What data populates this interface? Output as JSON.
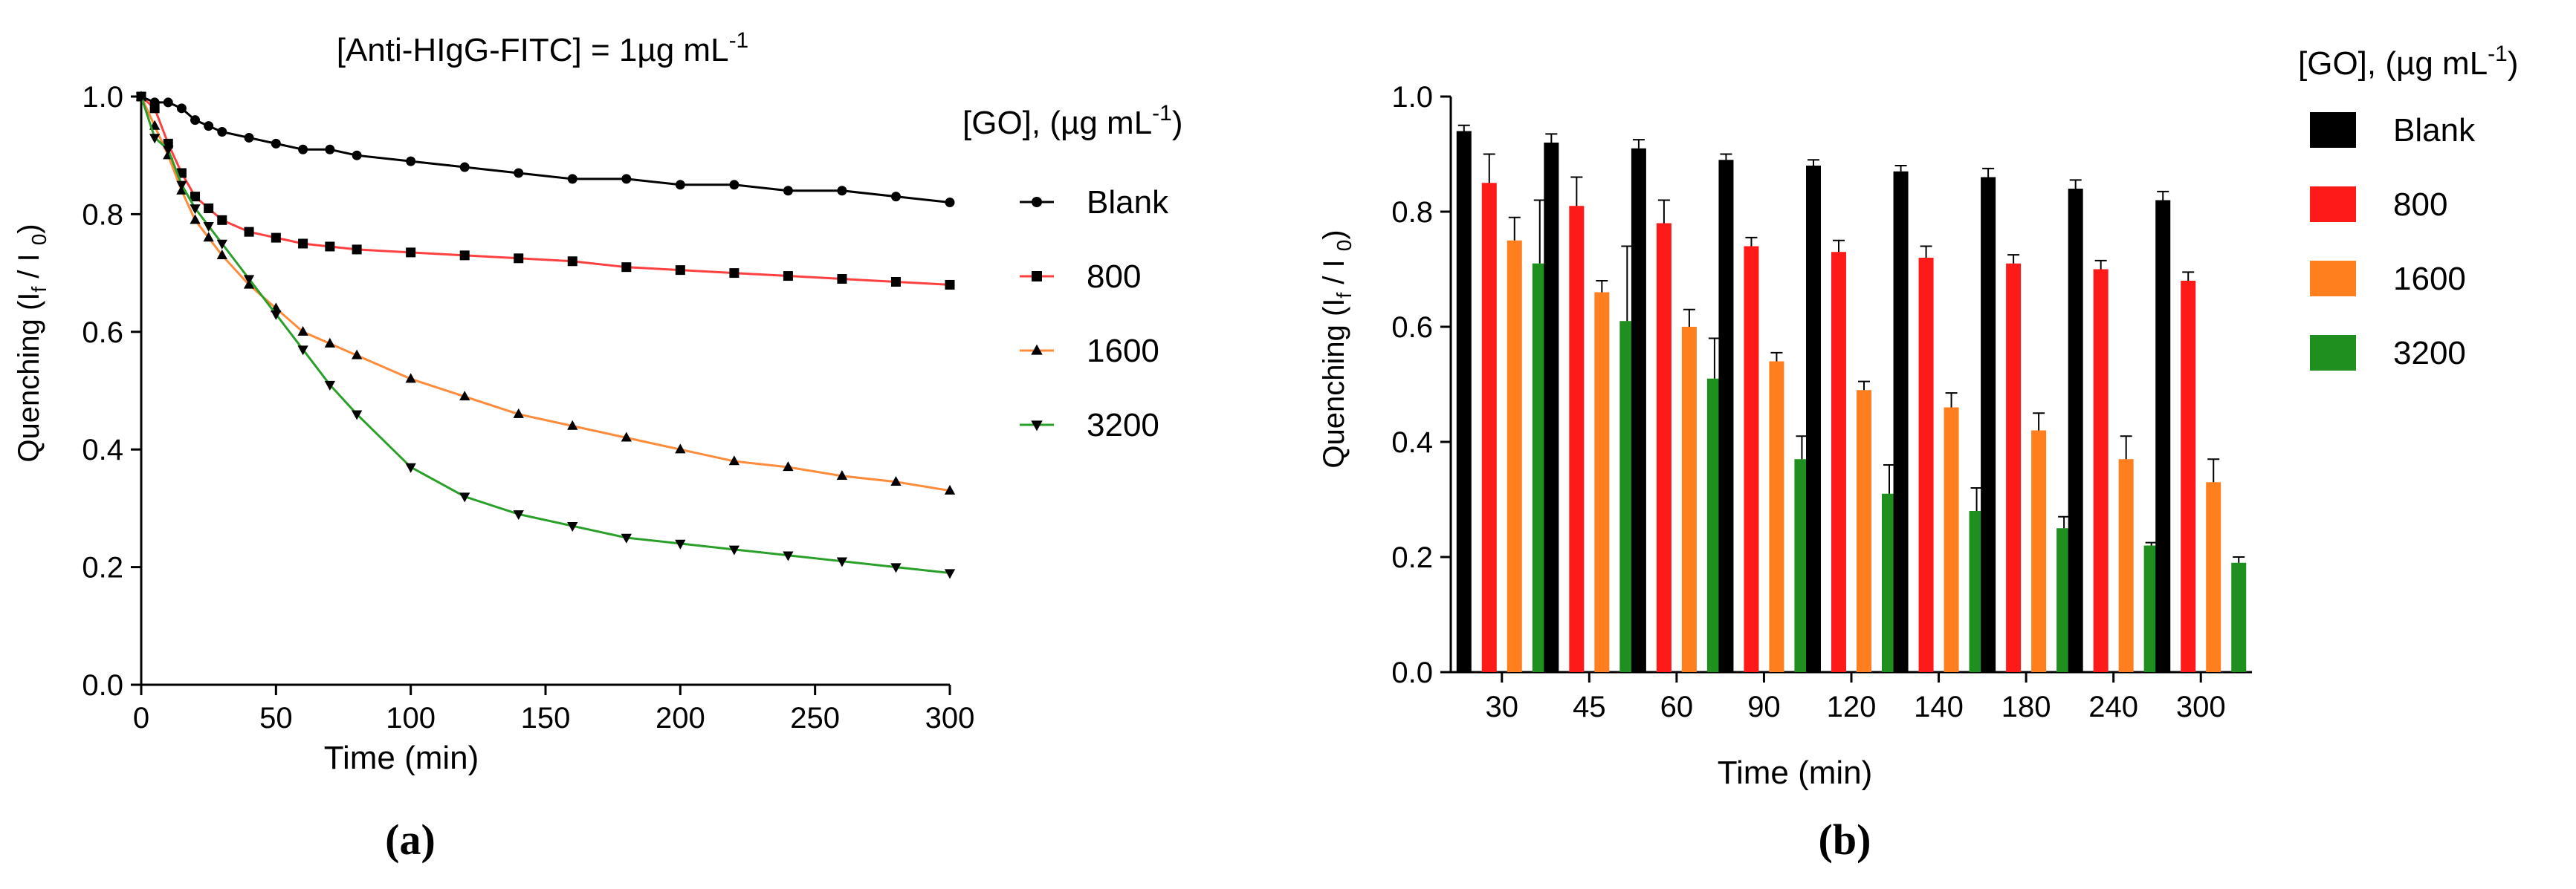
{
  "panel_a": {
    "label": "(a)",
    "title": "[Anti-HIgG-FITC] = 1µg mL⁻¹",
    "legend_title": "[GO],  (µg mL⁻¹)"
  },
  "panel_b": {
    "label": "(b)",
    "legend_title": "[GO],  (µg mL⁻¹)"
  },
  "colors": {
    "blank": "#000000",
    "c800": "#ff1a1a",
    "c1600": "#ff7f1f",
    "c3200": "#1f8f1f",
    "blank_line": "#000000",
    "c800_line": "#ff4040",
    "c1600_line": "#ff8c3a",
    "c3200_line": "#2aa02a"
  },
  "chart_data": [
    {
      "type": "line",
      "panel": "a",
      "title": "[Anti-HIgG-FITC] = 1µg mL⁻¹",
      "xlabel": "Time (min)",
      "ylabel": "Quenching (If / I0)",
      "xlim": [
        0,
        300
      ],
      "ylim": [
        0,
        1.0
      ],
      "xticks": [
        0,
        50,
        100,
        150,
        200,
        250,
        300
      ],
      "yticks": [
        0.0,
        0.2,
        0.4,
        0.6,
        0.8,
        1.0
      ],
      "legend_title": "[GO],  (µg mL⁻¹)",
      "legend_position": "right",
      "series": [
        {
          "name": "Blank",
          "marker": "circle",
          "x": [
            0,
            5,
            10,
            15,
            20,
            25,
            30,
            40,
            50,
            60,
            70,
            80,
            100,
            120,
            140,
            160,
            180,
            200,
            220,
            240,
            260,
            280,
            300
          ],
          "y": [
            1.0,
            0.99,
            0.99,
            0.98,
            0.96,
            0.95,
            0.94,
            0.93,
            0.92,
            0.91,
            0.91,
            0.9,
            0.89,
            0.88,
            0.87,
            0.86,
            0.86,
            0.85,
            0.85,
            0.84,
            0.84,
            0.83,
            0.82
          ]
        },
        {
          "name": "800",
          "marker": "square",
          "x": [
            0,
            5,
            10,
            15,
            20,
            25,
            30,
            40,
            50,
            60,
            70,
            80,
            100,
            120,
            140,
            160,
            180,
            200,
            220,
            240,
            260,
            280,
            300
          ],
          "y": [
            1.0,
            0.98,
            0.92,
            0.87,
            0.83,
            0.81,
            0.79,
            0.77,
            0.76,
            0.75,
            0.745,
            0.74,
            0.735,
            0.73,
            0.725,
            0.72,
            0.71,
            0.705,
            0.7,
            0.695,
            0.69,
            0.685,
            0.68
          ]
        },
        {
          "name": "1600",
          "marker": "triangle",
          "x": [
            0,
            5,
            10,
            15,
            20,
            25,
            30,
            40,
            50,
            60,
            70,
            80,
            100,
            120,
            140,
            160,
            180,
            200,
            220,
            240,
            260,
            280,
            300
          ],
          "y": [
            1.0,
            0.95,
            0.9,
            0.84,
            0.79,
            0.76,
            0.73,
            0.68,
            0.64,
            0.6,
            0.58,
            0.56,
            0.52,
            0.49,
            0.46,
            0.44,
            0.42,
            0.4,
            0.38,
            0.37,
            0.355,
            0.345,
            0.33
          ]
        },
        {
          "name": "3200",
          "marker": "triangle-down",
          "x": [
            0,
            5,
            10,
            15,
            20,
            25,
            30,
            40,
            50,
            60,
            70,
            80,
            100,
            120,
            140,
            160,
            180,
            200,
            220,
            240,
            260,
            280,
            300
          ],
          "y": [
            1.0,
            0.93,
            0.91,
            0.85,
            0.81,
            0.78,
            0.75,
            0.69,
            0.63,
            0.57,
            0.51,
            0.46,
            0.37,
            0.32,
            0.29,
            0.27,
            0.25,
            0.24,
            0.23,
            0.22,
            0.21,
            0.2,
            0.19
          ]
        }
      ]
    },
    {
      "type": "bar",
      "panel": "b",
      "xlabel": "Time (min)",
      "ylabel": "Quenching (If / I0)",
      "ylim": [
        0,
        1.0
      ],
      "yticks": [
        0.0,
        0.2,
        0.4,
        0.6,
        0.8,
        1.0
      ],
      "legend_title": "[GO],  (µg mL⁻¹)",
      "legend_position": "right",
      "categories": [
        "30",
        "45",
        "60",
        "90",
        "120",
        "140",
        "180",
        "240",
        "300"
      ],
      "series": [
        {
          "name": "Blank",
          "values": [
            0.94,
            0.92,
            0.91,
            0.89,
            0.88,
            0.87,
            0.86,
            0.84,
            0.82
          ],
          "errors": [
            0.01,
            0.015,
            0.015,
            0.01,
            0.01,
            0.01,
            0.015,
            0.015,
            0.015
          ]
        },
        {
          "name": "800",
          "values": [
            0.85,
            0.81,
            0.78,
            0.74,
            0.73,
            0.72,
            0.71,
            0.7,
            0.68
          ],
          "errors": [
            0.05,
            0.05,
            0.04,
            0.015,
            0.02,
            0.02,
            0.015,
            0.015,
            0.015
          ]
        },
        {
          "name": "1600",
          "values": [
            0.75,
            0.66,
            0.6,
            0.54,
            0.49,
            0.46,
            0.42,
            0.37,
            0.33
          ],
          "errors": [
            0.04,
            0.02,
            0.03,
            0.015,
            0.015,
            0.025,
            0.03,
            0.04,
            0.04
          ]
        },
        {
          "name": "3200",
          "values": [
            0.71,
            0.61,
            0.51,
            0.37,
            0.31,
            0.28,
            0.25,
            0.22,
            0.19
          ],
          "errors": [
            0.11,
            0.13,
            0.07,
            0.04,
            0.05,
            0.04,
            0.02,
            0.005,
            0.01
          ]
        }
      ]
    }
  ]
}
